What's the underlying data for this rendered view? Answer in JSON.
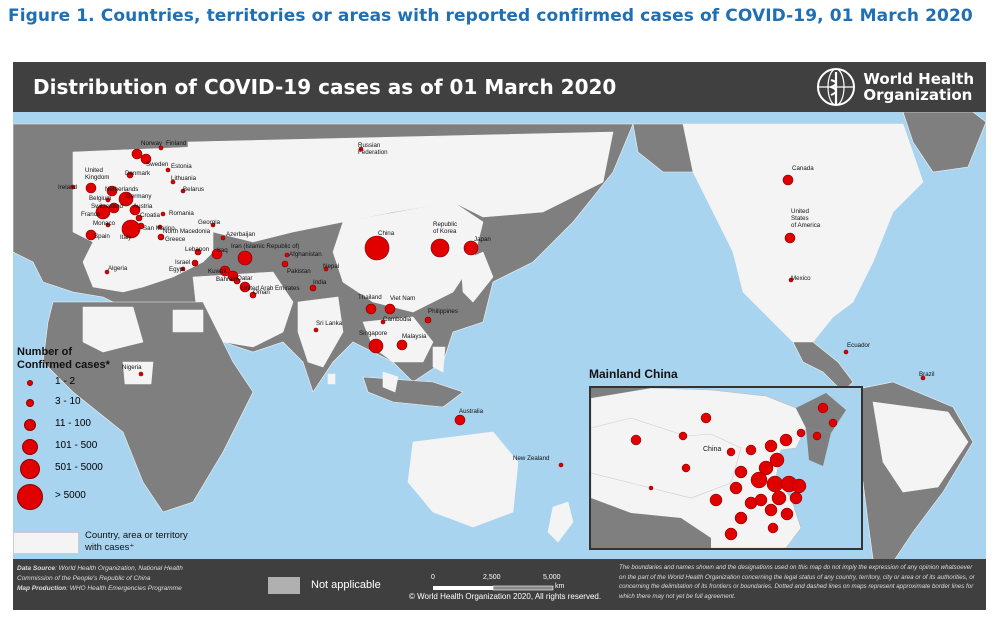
{
  "figure_title": "Figure 1. Countries, territories or areas with reported confirmed cases of COVID-19, 01 March 2020",
  "map": {
    "title": "Distribution of COVID-19  cases as of 01 March 2020",
    "organization": "World Health\nOrganization",
    "inset_title": "Mainland China",
    "inset_label": "China",
    "colors": {
      "ocean": "#a9d4ef",
      "affected": "#f4f4f4",
      "not_applicable": "#808080",
      "marker": "#e00000",
      "header": "#404040"
    }
  },
  "legend": {
    "title": "Number of\nConfirmed cases*",
    "bins": [
      "1 - 2",
      "3 - 10",
      "11 - 100",
      "101 - 500",
      "501 - 5000",
      "> 5000"
    ],
    "affected_label": "Country, area or territory\nwith cases⁺"
  },
  "footer": {
    "data_source_label": "Data Source",
    "data_source": ": World Health Organization, National Health Commission of the People's Republic of China",
    "map_production_label": "Map Production",
    "map_production": ": WHO Health Emergencies Programme",
    "not_applicable": "Not applicable",
    "scale": [
      "0",
      "2,500",
      "5,000",
      "km"
    ],
    "copyright": "© World Health Organization  2020,  All rights reserved.",
    "disclaimer": "The boundaries and names shown and the designations used on this map do not imply the expression of any opinion whatsoever on the part of the World Health Organization concerning the legal status of any country, territory, city or area or of its authorities, or concerning the delimitation of its frontiers or boundaries. Dotted and dashed lines on maps represent approximate border lines for which there may not yet be full agreement."
  },
  "countries": [
    {
      "name": "Norway",
      "bin": 3
    },
    {
      "name": "Finland",
      "bin": 1
    },
    {
      "name": "Sweden",
      "bin": 3
    },
    {
      "name": "Estonia",
      "bin": 1
    },
    {
      "name": "Denmark",
      "bin": 2
    },
    {
      "name": "Lithuania",
      "bin": 1
    },
    {
      "name": "United Kingdom",
      "bin": 3
    },
    {
      "name": "Netherlands",
      "bin": 3
    },
    {
      "name": "Belarus",
      "bin": 1
    },
    {
      "name": "Ireland",
      "bin": 1
    },
    {
      "name": "Belgium",
      "bin": 1
    },
    {
      "name": "Germany",
      "bin": 4
    },
    {
      "name": "Switzerland",
      "bin": 3
    },
    {
      "name": "Austria",
      "bin": 3
    },
    {
      "name": "France",
      "bin": 4
    },
    {
      "name": "Croatia",
      "bin": 2
    },
    {
      "name": "Romania",
      "bin": 1
    },
    {
      "name": "Monaco",
      "bin": 1
    },
    {
      "name": "San Marino",
      "bin": 2
    },
    {
      "name": "Georgia",
      "bin": 1
    },
    {
      "name": "Spain",
      "bin": 3
    },
    {
      "name": "Italy",
      "bin": 5
    },
    {
      "name": "North Macedonia",
      "bin": 1
    },
    {
      "name": "Greece",
      "bin": 2
    },
    {
      "name": "Azerbaijan",
      "bin": 1
    },
    {
      "name": "Lebanon",
      "bin": 2
    },
    {
      "name": "Iran (Islamic Republic of)",
      "bin": 4
    },
    {
      "name": "Israel",
      "bin": 2
    },
    {
      "name": "Iraq",
      "bin": 3
    },
    {
      "name": "Afghanistan",
      "bin": 1
    },
    {
      "name": "Egypt",
      "bin": 1
    },
    {
      "name": "Kuwait",
      "bin": 3
    },
    {
      "name": "Bahrain",
      "bin": 3
    },
    {
      "name": "Qatar",
      "bin": 2
    },
    {
      "name": "Pakistan",
      "bin": 2
    },
    {
      "name": "Nepal",
      "bin": 1
    },
    {
      "name": "United Arab Emirates",
      "bin": 3
    },
    {
      "name": "Oman",
      "bin": 2
    },
    {
      "name": "India",
      "bin": 2
    },
    {
      "name": "Algeria",
      "bin": 1
    },
    {
      "name": "Nigeria",
      "bin": 1
    },
    {
      "name": "Russian Federation",
      "bin": 1
    },
    {
      "name": "China",
      "bin": 6
    },
    {
      "name": "Republic of Korea",
      "bin": 5
    },
    {
      "name": "Japan",
      "bin": 4
    },
    {
      "name": "Thailand",
      "bin": 3
    },
    {
      "name": "Viet Nam",
      "bin": 3
    },
    {
      "name": "Cambodia",
      "bin": 1
    },
    {
      "name": "Philippines",
      "bin": 2
    },
    {
      "name": "Sri Lanka",
      "bin": 1
    },
    {
      "name": "Singapore",
      "bin": 4
    },
    {
      "name": "Malaysia",
      "bin": 3
    },
    {
      "name": "Australia",
      "bin": 3
    },
    {
      "name": "New Zealand",
      "bin": 1
    },
    {
      "name": "Canada",
      "bin": 3
    },
    {
      "name": "United States of America",
      "bin": 3
    },
    {
      "name": "Mexico",
      "bin": 1
    },
    {
      "name": "Ecuador",
      "bin": 1
    },
    {
      "name": "Brazil",
      "bin": 1
    }
  ],
  "labels": {
    "norway": "Norway",
    "finland": "Finland",
    "sweden": "Sweden",
    "estonia": "Estonia",
    "denmark": "Denmark",
    "lithuania": "Lithuania",
    "uk": "United\nKingdom",
    "netherlands": "Netherlands",
    "belarus": "Belarus",
    "ireland": "Ireland",
    "belgium": "Belgium",
    "germany": "Germany",
    "switzerland": "Switzerland",
    "austria": "Austria",
    "france": "France",
    "croatia": "Croatia",
    "romania": "Romania",
    "monaco": "Monaco",
    "sanmarino": "San Marino",
    "georgia": "Georgia",
    "spain": "Spain",
    "italy": "Italy",
    "macedonia": "North Macedonia",
    "greece": "Greece",
    "azerbaijan": "Azerbaijan",
    "lebanon": "Lebanon",
    "iran": "Iran (Islamic Republic of)",
    "israel": "Israel",
    "iraq": "Iraq",
    "afghanistan": "Afghanistan",
    "egypt": "Egypt",
    "kuwait": "Kuwait",
    "bahrain": "Bahrain",
    "qatar": "Qatar",
    "pakistan": "Pakistan",
    "nepal": "Nepal",
    "uae": "United Arab Emirates",
    "oman": "Oman",
    "india": "India",
    "algeria": "Algeria",
    "nigeria": "Nigeria",
    "russia": "Russian\nFederation",
    "china": "China",
    "korea": "Republic\nof Korea",
    "japan": "Japan",
    "thailand": "Thailand",
    "vietnam": "Viet Nam",
    "cambodia": "Cambodia",
    "philippines": "Philippines",
    "srilanka": "Sri Lanka",
    "singapore": "Singapore",
    "malaysia": "Malaysia",
    "australia": "Australia",
    "newzealand": "New Zealand",
    "canada": "Canada",
    "usa": "United\nStates\nof America",
    "mexico": "Mexico",
    "ecuador": "Ecuador",
    "brazil": "Brazil"
  }
}
